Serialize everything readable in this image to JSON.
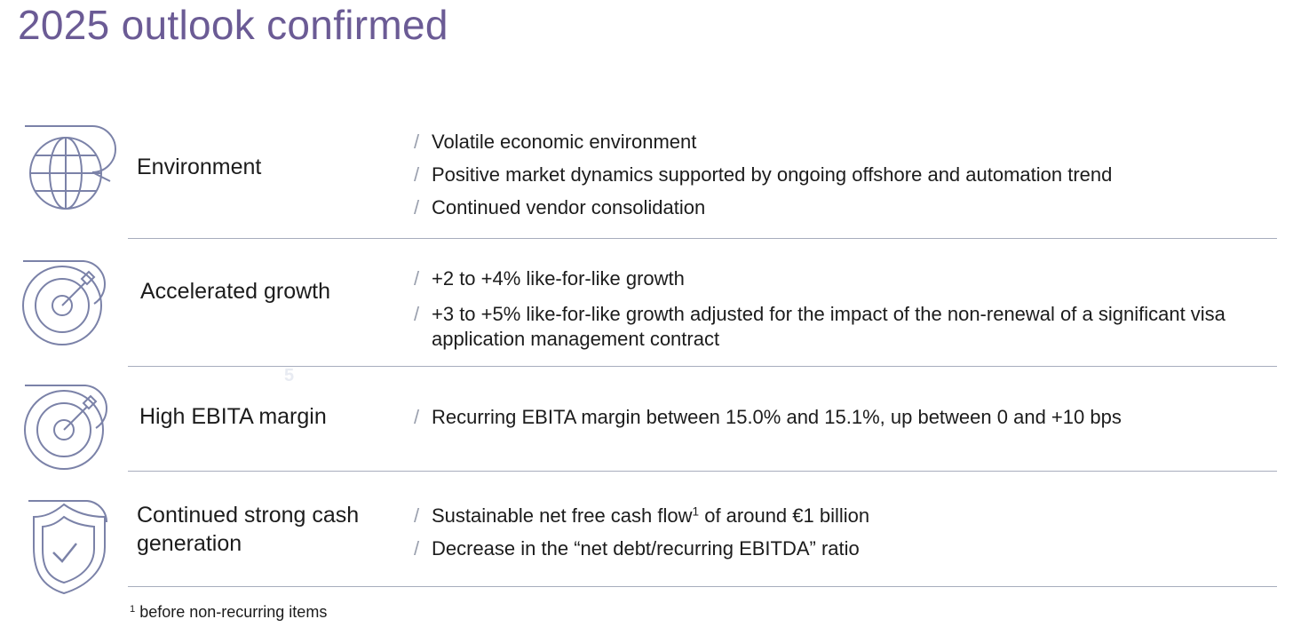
{
  "title": "2025 outlook confirmed",
  "bullet_marker": "/",
  "rows": [
    {
      "icon": "globe-icon",
      "label": "Environment",
      "bullets": [
        "Volatile economic environment",
        "Positive market dynamics supported by ongoing offshore and automation trend",
        "Continued vendor consolidation"
      ]
    },
    {
      "icon": "target-icon",
      "label": "Accelerated growth",
      "bullets": [
        "+2 to +4% like-for-like growth",
        "+3 to +5% like-for-like growth adjusted for the impact of the non-renewal of a significant visa application management contract"
      ]
    },
    {
      "icon": "target-icon",
      "label": "High EBITA margin",
      "bullets": [
        "Recurring EBITA margin between 15.0% and 15.1%,  up between 0 and +10 bps"
      ]
    },
    {
      "icon": "shield-check-icon",
      "label_line1": "Continued strong cash",
      "label_line2": "generation",
      "bullet1_pre": "Sustainable net free cash flow",
      "bullet1_sup": "1",
      "bullet1_post": " of around €1 billion",
      "bullet2": "Decrease in the “net debt/recurring EBITDA” ratio"
    }
  ],
  "faint_mark": "5",
  "footnote": {
    "marker": "1",
    "text": " before non-recurring items"
  },
  "colors": {
    "title": "#6b5b95",
    "icon_stroke": "#7b82a8",
    "divider": "#a7adbd",
    "slash": "#9aa0ae"
  }
}
